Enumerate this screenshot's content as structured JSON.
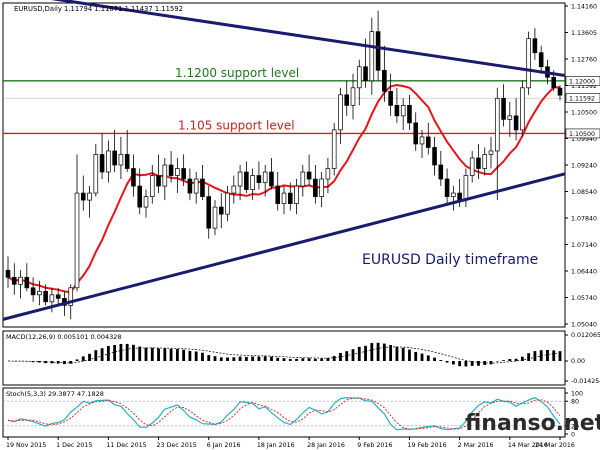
{
  "chart_data": [
    {
      "type": "candlestick",
      "title": "EURUSD,Daily",
      "ohlc_header": "EURUSD,Daily  1.11794 1.11871 1.11437 1.11592",
      "x_tick_labels": [
        "19 Nov 2015",
        "1 Dec 2015",
        "11 Dec 2015",
        "23 Dec 2015",
        "6 Jan 2016",
        "18 Jan 2016",
        "28 Jan 2016",
        "9 Feb 2016",
        "19 Feb 2016",
        "2 Mar 2016",
        "14 Mar 2016",
        "24 Mar 2016"
      ],
      "y_tick_labels": [
        "1.14160",
        "1.13605",
        "1.12760",
        "1.11592",
        "1.10500",
        "1.09940",
        "1.09240",
        "1.08540",
        "1.07840",
        "1.07140",
        "1.06440",
        "1.05740",
        "1.05040"
      ],
      "ylim": [
        1.0504,
        1.1416
      ],
      "candles": [
        {
          "o": 1.066,
          "h": 1.07,
          "l": 1.061,
          "c": 1.064
        },
        {
          "o": 1.064,
          "h": 1.068,
          "l": 1.059,
          "c": 1.062
        },
        {
          "o": 1.062,
          "h": 1.066,
          "l": 1.058,
          "c": 1.064
        },
        {
          "o": 1.064,
          "h": 1.068,
          "l": 1.06,
          "c": 1.061
        },
        {
          "o": 1.061,
          "h": 1.064,
          "l": 1.057,
          "c": 1.059
        },
        {
          "o": 1.059,
          "h": 1.063,
          "l": 1.056,
          "c": 1.06
        },
        {
          "o": 1.06,
          "h": 1.062,
          "l": 1.056,
          "c": 1.057
        },
        {
          "o": 1.057,
          "h": 1.061,
          "l": 1.054,
          "c": 1.059
        },
        {
          "o": 1.059,
          "h": 1.061,
          "l": 1.056,
          "c": 1.058
        },
        {
          "o": 1.058,
          "h": 1.06,
          "l": 1.053,
          "c": 1.056
        },
        {
          "o": 1.056,
          "h": 1.062,
          "l": 1.052,
          "c": 1.061
        },
        {
          "o": 1.061,
          "h": 1.099,
          "l": 1.06,
          "c": 1.088
        },
        {
          "o": 1.088,
          "h": 1.093,
          "l": 1.083,
          "c": 1.086
        },
        {
          "o": 1.086,
          "h": 1.09,
          "l": 1.081,
          "c": 1.088
        },
        {
          "o": 1.088,
          "h": 1.102,
          "l": 1.087,
          "c": 1.099
        },
        {
          "o": 1.099,
          "h": 1.105,
          "l": 1.092,
          "c": 1.094
        },
        {
          "o": 1.094,
          "h": 1.103,
          "l": 1.091,
          "c": 1.1
        },
        {
          "o": 1.1,
          "h": 1.106,
          "l": 1.094,
          "c": 1.096
        },
        {
          "o": 1.096,
          "h": 1.104,
          "l": 1.092,
          "c": 1.099
        },
        {
          "o": 1.099,
          "h": 1.106,
          "l": 1.094,
          "c": 1.095
        },
        {
          "o": 1.095,
          "h": 1.099,
          "l": 1.087,
          "c": 1.09
        },
        {
          "o": 1.09,
          "h": 1.095,
          "l": 1.082,
          "c": 1.084
        },
        {
          "o": 1.084,
          "h": 1.089,
          "l": 1.081,
          "c": 1.087
        },
        {
          "o": 1.087,
          "h": 1.096,
          "l": 1.085,
          "c": 1.093
        },
        {
          "o": 1.093,
          "h": 1.099,
          "l": 1.088,
          "c": 1.09
        },
        {
          "o": 1.09,
          "h": 1.098,
          "l": 1.086,
          "c": 1.096
        },
        {
          "o": 1.096,
          "h": 1.1,
          "l": 1.091,
          "c": 1.093
        },
        {
          "o": 1.093,
          "h": 1.098,
          "l": 1.088,
          "c": 1.095
        },
        {
          "o": 1.095,
          "h": 1.099,
          "l": 1.09,
          "c": 1.092
        },
        {
          "o": 1.092,
          "h": 1.095,
          "l": 1.086,
          "c": 1.088
        },
        {
          "o": 1.088,
          "h": 1.094,
          "l": 1.085,
          "c": 1.092
        },
        {
          "o": 1.092,
          "h": 1.096,
          "l": 1.086,
          "c": 1.087
        },
        {
          "o": 1.087,
          "h": 1.09,
          "l": 1.075,
          "c": 1.078
        },
        {
          "o": 1.078,
          "h": 1.086,
          "l": 1.076,
          "c": 1.084
        },
        {
          "o": 1.084,
          "h": 1.088,
          "l": 1.078,
          "c": 1.082
        },
        {
          "o": 1.082,
          "h": 1.09,
          "l": 1.08,
          "c": 1.088
        },
        {
          "o": 1.088,
          "h": 1.093,
          "l": 1.085,
          "c": 1.09
        },
        {
          "o": 1.09,
          "h": 1.096,
          "l": 1.086,
          "c": 1.094
        },
        {
          "o": 1.094,
          "h": 1.097,
          "l": 1.088,
          "c": 1.089
        },
        {
          "o": 1.089,
          "h": 1.095,
          "l": 1.086,
          "c": 1.093
        },
        {
          "o": 1.093,
          "h": 1.097,
          "l": 1.089,
          "c": 1.091
        },
        {
          "o": 1.091,
          "h": 1.096,
          "l": 1.087,
          "c": 1.094
        },
        {
          "o": 1.094,
          "h": 1.098,
          "l": 1.089,
          "c": 1.09
        },
        {
          "o": 1.09,
          "h": 1.094,
          "l": 1.083,
          "c": 1.085
        },
        {
          "o": 1.085,
          "h": 1.09,
          "l": 1.082,
          "c": 1.088
        },
        {
          "o": 1.088,
          "h": 1.091,
          "l": 1.083,
          "c": 1.085
        },
        {
          "o": 1.085,
          "h": 1.092,
          "l": 1.082,
          "c": 1.09
        },
        {
          "o": 1.09,
          "h": 1.096,
          "l": 1.087,
          "c": 1.094
        },
        {
          "o": 1.094,
          "h": 1.099,
          "l": 1.09,
          "c": 1.092
        },
        {
          "o": 1.092,
          "h": 1.096,
          "l": 1.085,
          "c": 1.087
        },
        {
          "o": 1.087,
          "h": 1.094,
          "l": 1.084,
          "c": 1.092
        },
        {
          "o": 1.092,
          "h": 1.098,
          "l": 1.088,
          "c": 1.095
        },
        {
          "o": 1.095,
          "h": 1.108,
          "l": 1.093,
          "c": 1.106
        },
        {
          "o": 1.106,
          "h": 1.118,
          "l": 1.102,
          "c": 1.116
        },
        {
          "o": 1.116,
          "h": 1.12,
          "l": 1.11,
          "c": 1.113
        },
        {
          "o": 1.113,
          "h": 1.122,
          "l": 1.109,
          "c": 1.118
        },
        {
          "o": 1.118,
          "h": 1.126,
          "l": 1.113,
          "c": 1.124
        },
        {
          "o": 1.124,
          "h": 1.132,
          "l": 1.118,
          "c": 1.12
        },
        {
          "o": 1.12,
          "h": 1.138,
          "l": 1.116,
          "c": 1.134
        },
        {
          "o": 1.134,
          "h": 1.14,
          "l": 1.12,
          "c": 1.123
        },
        {
          "o": 1.123,
          "h": 1.13,
          "l": 1.114,
          "c": 1.117
        },
        {
          "o": 1.117,
          "h": 1.122,
          "l": 1.11,
          "c": 1.113
        },
        {
          "o": 1.113,
          "h": 1.118,
          "l": 1.108,
          "c": 1.11
        },
        {
          "o": 1.11,
          "h": 1.115,
          "l": 1.106,
          "c": 1.113
        },
        {
          "o": 1.113,
          "h": 1.116,
          "l": 1.106,
          "c": 1.108
        },
        {
          "o": 1.108,
          "h": 1.111,
          "l": 1.1,
          "c": 1.102
        },
        {
          "o": 1.102,
          "h": 1.106,
          "l": 1.098,
          "c": 1.104
        },
        {
          "o": 1.104,
          "h": 1.108,
          "l": 1.099,
          "c": 1.101
        },
        {
          "o": 1.101,
          "h": 1.104,
          "l": 1.093,
          "c": 1.096
        },
        {
          "o": 1.096,
          "h": 1.1,
          "l": 1.09,
          "c": 1.092
        },
        {
          "o": 1.092,
          "h": 1.095,
          "l": 1.085,
          "c": 1.087
        },
        {
          "o": 1.087,
          "h": 1.09,
          "l": 1.083,
          "c": 1.088
        },
        {
          "o": 1.088,
          "h": 1.092,
          "l": 1.084,
          "c": 1.086
        },
        {
          "o": 1.086,
          "h": 1.095,
          "l": 1.084,
          "c": 1.093
        },
        {
          "o": 1.093,
          "h": 1.1,
          "l": 1.091,
          "c": 1.098
        },
        {
          "o": 1.098,
          "h": 1.102,
          "l": 1.092,
          "c": 1.095
        },
        {
          "o": 1.095,
          "h": 1.101,
          "l": 1.093,
          "c": 1.099
        },
        {
          "o": 1.099,
          "h": 1.104,
          "l": 1.095,
          "c": 1.1
        },
        {
          "o": 1.1,
          "h": 1.118,
          "l": 1.086,
          "c": 1.115
        },
        {
          "o": 1.115,
          "h": 1.119,
          "l": 1.107,
          "c": 1.109
        },
        {
          "o": 1.109,
          "h": 1.114,
          "l": 1.104,
          "c": 1.11
        },
        {
          "o": 1.11,
          "h": 1.115,
          "l": 1.103,
          "c": 1.106
        },
        {
          "o": 1.106,
          "h": 1.12,
          "l": 1.104,
          "c": 1.118
        },
        {
          "o": 1.118,
          "h": 1.134,
          "l": 1.116,
          "c": 1.132
        },
        {
          "o": 1.132,
          "h": 1.135,
          "l": 1.126,
          "c": 1.128
        },
        {
          "o": 1.128,
          "h": 1.13,
          "l": 1.122,
          "c": 1.124
        },
        {
          "o": 1.124,
          "h": 1.126,
          "l": 1.119,
          "c": 1.121
        },
        {
          "o": 1.121,
          "h": 1.123,
          "l": 1.117,
          "c": 1.118
        },
        {
          "o": 1.1179,
          "h": 1.1187,
          "l": 1.1144,
          "c": 1.1159
        }
      ],
      "moving_average": {
        "color": "#e8141a"
      },
      "trendlines": [
        {
          "name": "upper resistance",
          "color": "#1a1a6e",
          "from": [
            0,
            1.1455
          ],
          "to": [
            88,
            1.1215
          ]
        },
        {
          "name": "lower support",
          "color": "#1a1a6e",
          "from": [
            0,
            1.052
          ],
          "to": [
            88,
            1.0935
          ]
        }
      ],
      "horizontal_levels": [
        {
          "price": 1.12,
          "label": "1.1200 support level",
          "color": "#1e7a1e",
          "axis_tag": "1.12000"
        },
        {
          "price": 1.105,
          "label": "1.105 support level",
          "color": "#c8202a",
          "axis_tag": "1.10500"
        }
      ],
      "current_price_tag": "1.11592",
      "annotation": "EURUSD Daily timeframe"
    },
    {
      "type": "bar",
      "title": "MACD(12,26,9) 0.005101 0.004328",
      "y_tick_labels": [
        "0.012065",
        "0.00",
        "-0.014254"
      ],
      "ylim": [
        -0.014254,
        0.012065
      ]
    },
    {
      "type": "line",
      "title": "Stoch(5,3,3) 29.3877 47.1828",
      "y_tick_labels": [
        "100",
        "80",
        "20",
        "0"
      ],
      "ylim": [
        0,
        100
      ],
      "series": [
        {
          "color": "#26b0c8"
        },
        {
          "color": "#e02020"
        }
      ]
    }
  ],
  "watermark": "finanso.net"
}
